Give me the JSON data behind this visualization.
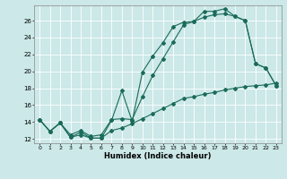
{
  "xlabel": "Humidex (Indice chaleur)",
  "bg_color": "#cce8e8",
  "line_color": "#1a6b5a",
  "grid_color": "#b0d4d4",
  "xlim": [
    -0.5,
    23.5
  ],
  "ylim": [
    11.5,
    27.8
  ],
  "xticks": [
    0,
    1,
    2,
    3,
    4,
    5,
    6,
    7,
    8,
    9,
    10,
    11,
    12,
    13,
    14,
    15,
    16,
    17,
    18,
    19,
    20,
    21,
    22,
    23
  ],
  "yticks": [
    12,
    14,
    16,
    18,
    20,
    22,
    24,
    26
  ],
  "line1_x": [
    0,
    1,
    2,
    3,
    4,
    5,
    6,
    7,
    8,
    9,
    10,
    11,
    12,
    13,
    14,
    15,
    16,
    17,
    18,
    19,
    20,
    21,
    22,
    23
  ],
  "line1_y": [
    14.3,
    12.9,
    13.9,
    12.2,
    12.8,
    12.1,
    12.1,
    14.2,
    17.7,
    14.1,
    19.9,
    21.8,
    23.4,
    25.3,
    25.8,
    25.9,
    27.1,
    27.1,
    27.4,
    26.5,
    26.0,
    20.9,
    20.4,
    18.3
  ],
  "line2_x": [
    0,
    1,
    2,
    3,
    4,
    5,
    6,
    7,
    8,
    9,
    10,
    11,
    12,
    13,
    14,
    15,
    16,
    17,
    18,
    19,
    20,
    21,
    22,
    23
  ],
  "line2_y": [
    14.3,
    12.9,
    13.9,
    12.5,
    13.0,
    12.3,
    12.5,
    14.3,
    14.4,
    14.3,
    17.0,
    19.5,
    21.5,
    23.5,
    25.5,
    25.9,
    26.4,
    26.7,
    26.8,
    26.5,
    26.0,
    20.9,
    20.4,
    18.3
  ],
  "line3_x": [
    0,
    1,
    2,
    3,
    4,
    5,
    6,
    7,
    8,
    9,
    10,
    11,
    12,
    13,
    14,
    15,
    16,
    17,
    18,
    19,
    20,
    21,
    22,
    23
  ],
  "line3_y": [
    14.3,
    12.9,
    13.9,
    12.2,
    12.5,
    12.1,
    12.1,
    13.0,
    13.3,
    13.8,
    14.4,
    15.0,
    15.6,
    16.2,
    16.8,
    17.0,
    17.3,
    17.5,
    17.8,
    18.0,
    18.2,
    18.3,
    18.4,
    18.6
  ]
}
